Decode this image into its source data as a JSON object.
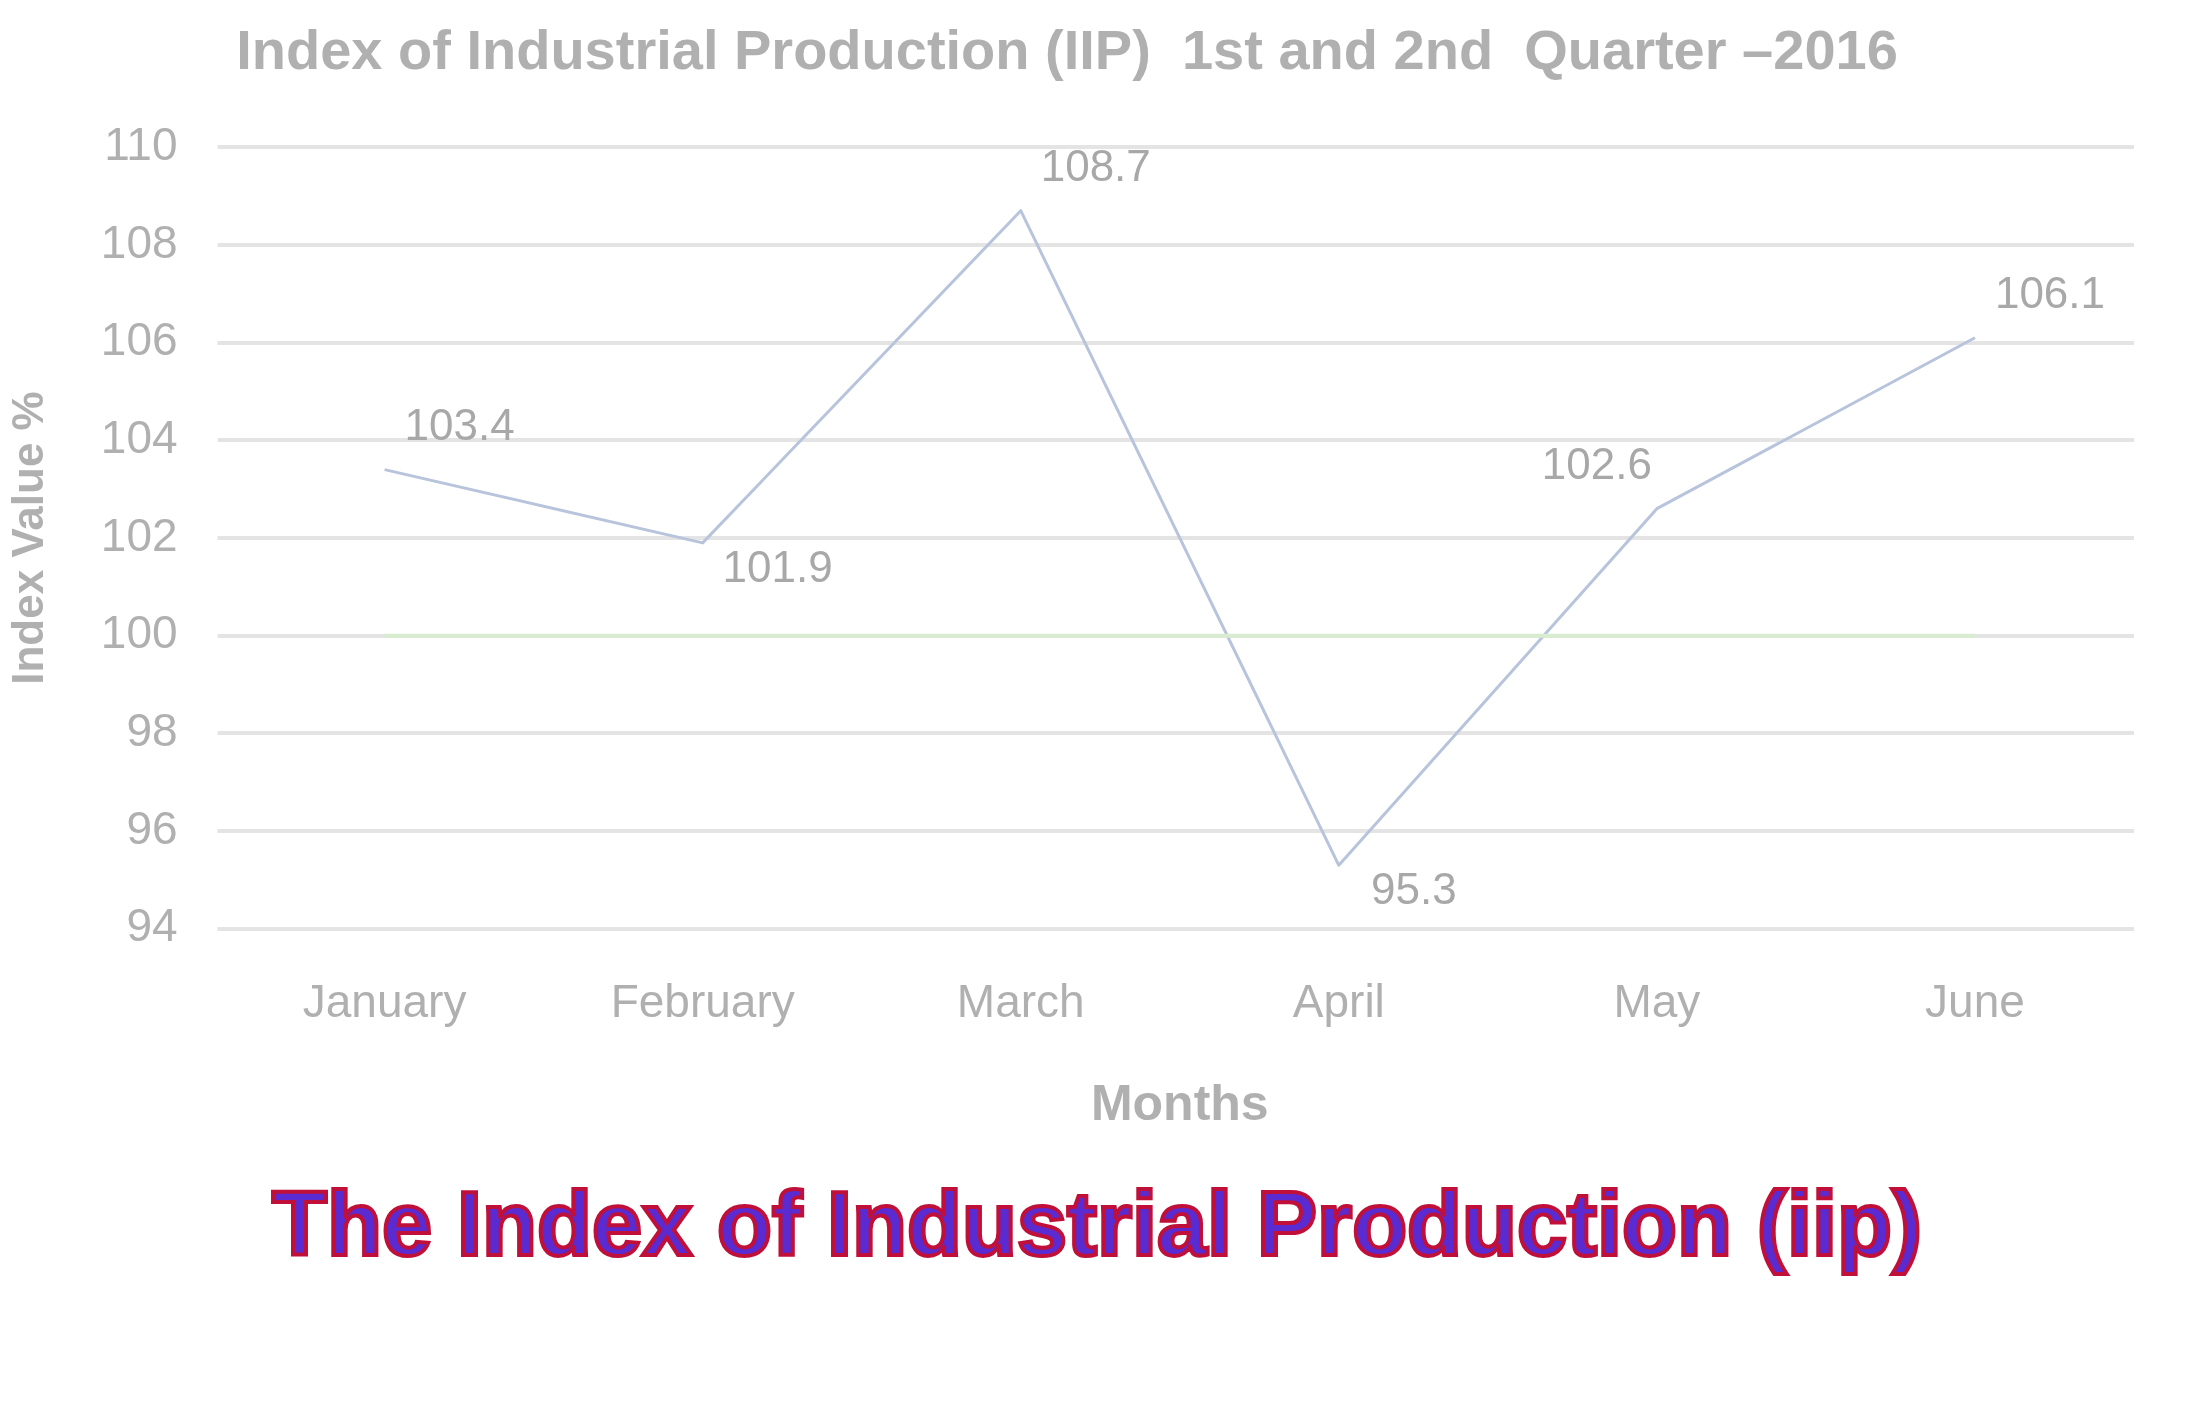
{
  "chart_data": {
    "type": "line",
    "title": "Index of Industrial Production (IIP)  1st and 2nd  Quarter –2016",
    "xlabel": "Months",
    "ylabel": "Index Value %",
    "categories": [
      "January",
      "February",
      "March",
      "April",
      "May",
      "June"
    ],
    "series": [
      {
        "color": "#b8c4dc",
        "values": [
          103.4,
          101.9,
          108.7,
          95.3,
          102.6,
          106.1
        ]
      }
    ],
    "ylim": [
      94,
      110
    ],
    "yticks": [
      94,
      96,
      98,
      100,
      102,
      104,
      106,
      108,
      110
    ],
    "grid": "y",
    "legend": false,
    "marker": "none",
    "line_style": "solid",
    "data_labels": true,
    "ref_lines": [
      {
        "axis": "y",
        "value": 100,
        "color": "#d8ecd0"
      }
    ],
    "annotations": [
      "The Index of Industrial Production (iip)"
    ]
  }
}
